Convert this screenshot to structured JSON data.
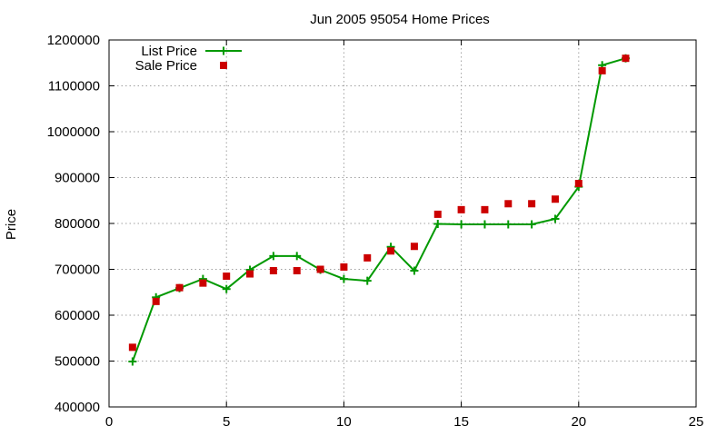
{
  "chart_data": {
    "type": "line",
    "title": "Jun 2005 95054 Home Prices",
    "xlabel": "",
    "ylabel": "Price",
    "xlim": [
      0,
      25
    ],
    "ylim": [
      400000,
      1200000
    ],
    "xticks": [
      0,
      5,
      10,
      15,
      20,
      25
    ],
    "yticks": [
      400000,
      500000,
      600000,
      700000,
      800000,
      900000,
      1000000,
      1100000,
      1200000
    ],
    "grid": true,
    "legend_position": "top-left",
    "series": [
      {
        "name": "List Price",
        "style": "line-with-plus-markers",
        "color": "#009900",
        "points": [
          [
            1,
            499000
          ],
          [
            2,
            639000
          ],
          [
            3,
            659000
          ],
          [
            4,
            679000
          ],
          [
            5,
            657000
          ],
          [
            6,
            699000
          ],
          [
            7,
            729000
          ],
          [
            8,
            729000
          ],
          [
            9,
            699000
          ],
          [
            10,
            679000
          ],
          [
            11,
            675000
          ],
          [
            12,
            749000
          ],
          [
            13,
            697000
          ],
          [
            14,
            799000
          ],
          [
            15,
            798000
          ],
          [
            16,
            798000
          ],
          [
            17,
            798000
          ],
          [
            18,
            798000
          ],
          [
            19,
            810000
          ],
          [
            20,
            880000
          ],
          [
            21,
            1145000
          ],
          [
            22,
            1160000
          ]
        ]
      },
      {
        "name": "Sale Price",
        "style": "square-markers",
        "color": "#cc0000",
        "points": [
          [
            1,
            530000
          ],
          [
            2,
            630000
          ],
          [
            3,
            660000
          ],
          [
            4,
            670000
          ],
          [
            5,
            685000
          ],
          [
            6,
            690000
          ],
          [
            7,
            697000
          ],
          [
            8,
            697000
          ],
          [
            9,
            700000
          ],
          [
            10,
            705000
          ],
          [
            11,
            725000
          ],
          [
            12,
            740000
          ],
          [
            13,
            750000
          ],
          [
            14,
            820000
          ],
          [
            15,
            830000
          ],
          [
            16,
            830000
          ],
          [
            17,
            843000
          ],
          [
            18,
            843000
          ],
          [
            19,
            853000
          ],
          [
            20,
            887000
          ],
          [
            21,
            1133000
          ],
          [
            22,
            1160000
          ]
        ]
      }
    ]
  }
}
